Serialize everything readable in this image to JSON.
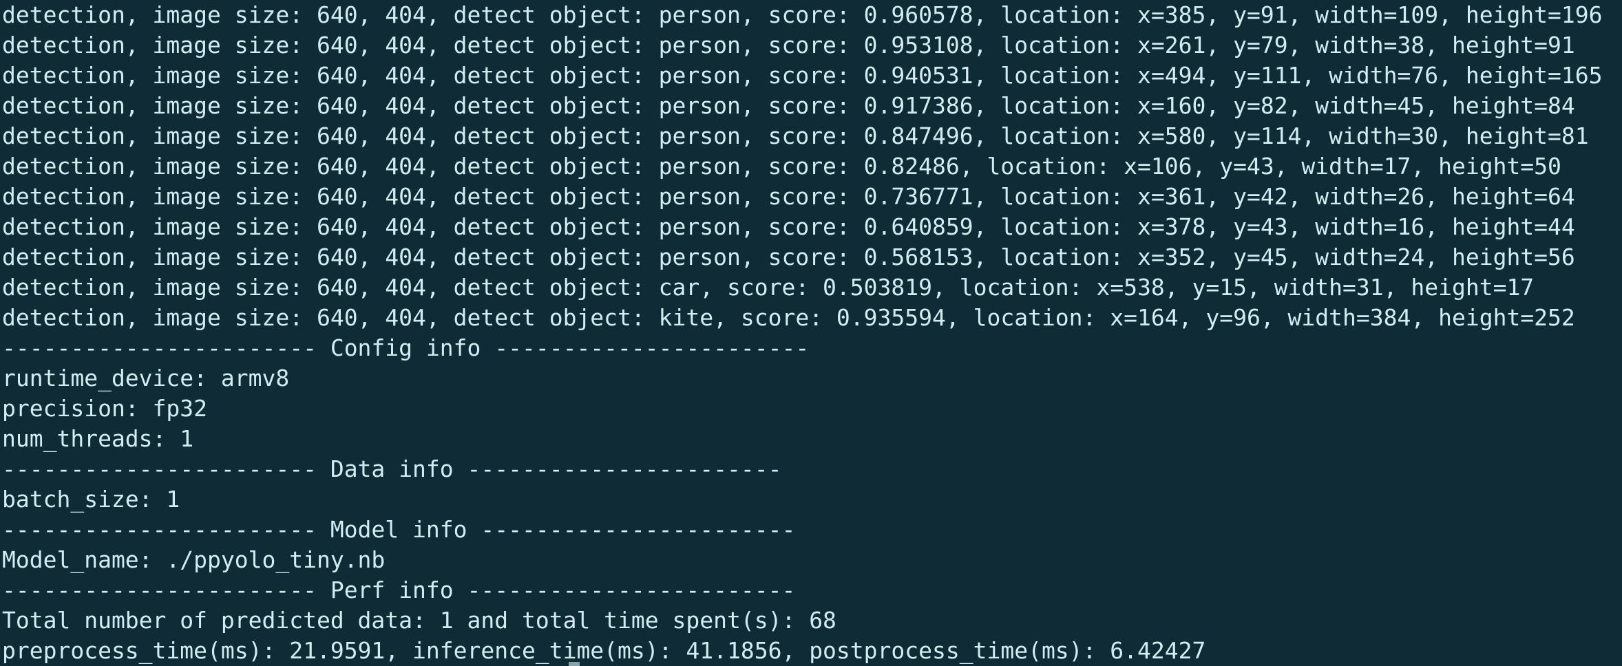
{
  "colors": {
    "background": "#0f2b36",
    "text": "#d3ecf0"
  },
  "lines": [
    "detection, image size: 640, 404, detect object: person, score: 0.960578, location: x=385, y=91, width=109, height=196",
    "detection, image size: 640, 404, detect object: person, score: 0.953108, location: x=261, y=79, width=38, height=91",
    "detection, image size: 640, 404, detect object: person, score: 0.940531, location: x=494, y=111, width=76, height=165",
    "detection, image size: 640, 404, detect object: person, score: 0.917386, location: x=160, y=82, width=45, height=84",
    "detection, image size: 640, 404, detect object: person, score: 0.847496, location: x=580, y=114, width=30, height=81",
    "detection, image size: 640, 404, detect object: person, score: 0.82486, location: x=106, y=43, width=17, height=50",
    "detection, image size: 640, 404, detect object: person, score: 0.736771, location: x=361, y=42, width=26, height=64",
    "detection, image size: 640, 404, detect object: person, score: 0.640859, location: x=378, y=43, width=16, height=44",
    "detection, image size: 640, 404, detect object: person, score: 0.568153, location: x=352, y=45, width=24, height=56",
    "detection, image size: 640, 404, detect object: car, score: 0.503819, location: x=538, y=15, width=31, height=17",
    "detection, image size: 640, 404, detect object: kite, score: 0.935594, location: x=164, y=96, width=384, height=252",
    "----------------------- Config info -----------------------",
    "runtime_device: armv8",
    "precision: fp32",
    "num_threads: 1",
    "----------------------- Data info -----------------------",
    "batch_size: 1",
    "----------------------- Model info -----------------------",
    "Model_name: ./ppyolo_tiny.nb",
    "----------------------- Perf info ------------------------",
    "Total number of predicted data: 1 and total time spent(s): 68",
    "preprocess_time(ms): 21.9591, inference_time(ms): 41.1856, postprocess_time(ms): 6.42427"
  ]
}
